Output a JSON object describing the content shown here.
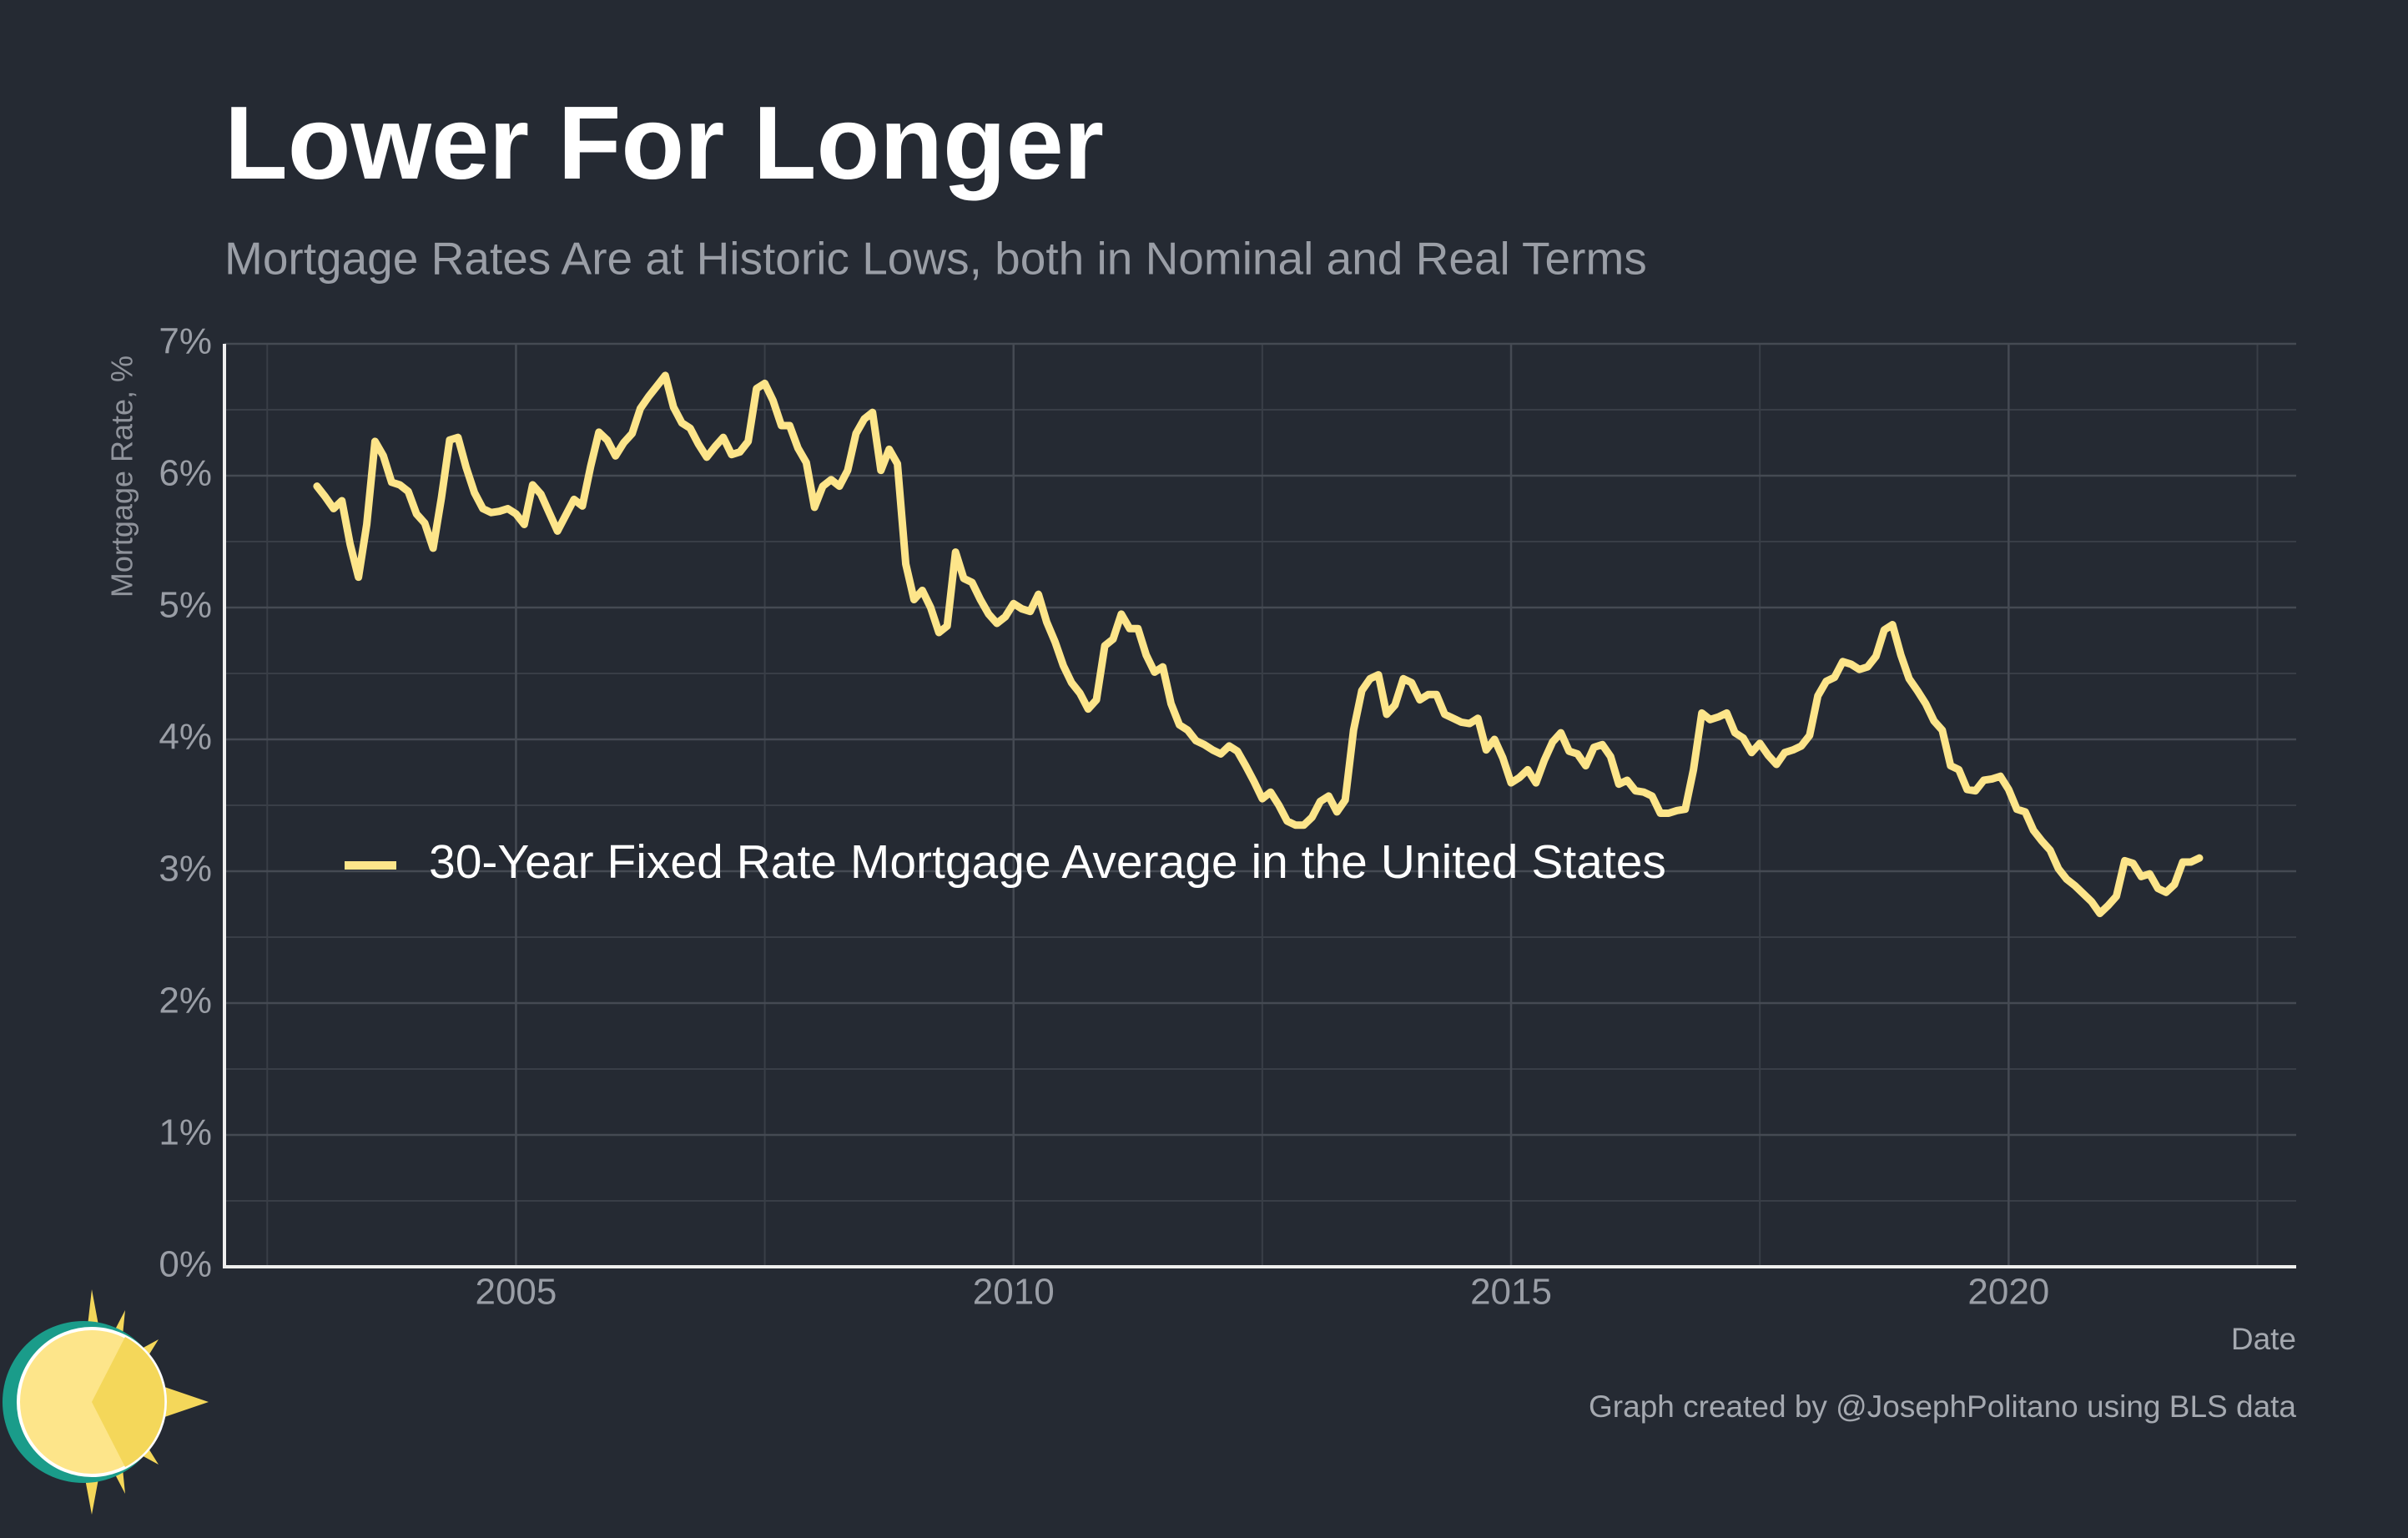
{
  "chart_data": {
    "type": "line",
    "title": "Lower For Longer",
    "subtitle": "Mortgage Rates Are at Historic Lows, both in Nominal and Real Terms",
    "y_label": "Mortgage Rate, %",
    "x_label": "Date",
    "caption": "Graph created by @JosephPolitano using BLS data",
    "xlim": [
      2002.07,
      2022.89
    ],
    "xticks": [
      2005,
      2010,
      2015,
      2020
    ],
    "ylim": [
      0,
      7
    ],
    "yticks": [
      {
        "value": 0,
        "label": "0%"
      },
      {
        "value": 1,
        "label": "1%"
      },
      {
        "value": 2,
        "label": "2%"
      },
      {
        "value": 3,
        "label": "3%"
      },
      {
        "value": 4,
        "label": "4%"
      },
      {
        "value": 5,
        "label": "5%"
      },
      {
        "value": 6,
        "label": "6%"
      },
      {
        "value": 7,
        "label": "7%"
      }
    ],
    "grid": true,
    "legend_position": "left",
    "x": [
      2003.0,
      2003.083,
      2003.167,
      2003.25,
      2003.333,
      2003.417,
      2003.5,
      2003.583,
      2003.667,
      2003.75,
      2003.833,
      2003.917,
      2004.0,
      2004.083,
      2004.167,
      2004.25,
      2004.333,
      2004.417,
      2004.5,
      2004.583,
      2004.667,
      2004.75,
      2004.833,
      2004.917,
      2005.0,
      2005.083,
      2005.167,
      2005.25,
      2005.333,
      2005.417,
      2005.5,
      2005.583,
      2005.667,
      2005.75,
      2005.833,
      2005.917,
      2006.0,
      2006.083,
      2006.167,
      2006.25,
      2006.333,
      2006.417,
      2006.5,
      2006.583,
      2006.667,
      2006.75,
      2006.833,
      2006.917,
      2007.0,
      2007.083,
      2007.167,
      2007.25,
      2007.333,
      2007.417,
      2007.5,
      2007.583,
      2007.667,
      2007.75,
      2007.833,
      2007.917,
      2008.0,
      2008.083,
      2008.167,
      2008.25,
      2008.333,
      2008.417,
      2008.5,
      2008.583,
      2008.667,
      2008.75,
      2008.833,
      2008.917,
      2009.0,
      2009.083,
      2009.167,
      2009.25,
      2009.333,
      2009.417,
      2009.5,
      2009.583,
      2009.667,
      2009.75,
      2009.833,
      2009.917,
      2010.0,
      2010.083,
      2010.167,
      2010.25,
      2010.333,
      2010.417,
      2010.5,
      2010.583,
      2010.667,
      2010.75,
      2010.833,
      2010.917,
      2011.0,
      2011.083,
      2011.167,
      2011.25,
      2011.333,
      2011.417,
      2011.5,
      2011.583,
      2011.667,
      2011.75,
      2011.833,
      2011.917,
      2012.0,
      2012.083,
      2012.167,
      2012.25,
      2012.333,
      2012.417,
      2012.5,
      2012.583,
      2012.667,
      2012.75,
      2012.833,
      2012.917,
      2013.0,
      2013.083,
      2013.167,
      2013.25,
      2013.333,
      2013.417,
      2013.5,
      2013.583,
      2013.667,
      2013.75,
      2013.833,
      2013.917,
      2014.0,
      2014.083,
      2014.167,
      2014.25,
      2014.333,
      2014.417,
      2014.5,
      2014.583,
      2014.667,
      2014.75,
      2014.833,
      2014.917,
      2015.0,
      2015.083,
      2015.167,
      2015.25,
      2015.333,
      2015.417,
      2015.5,
      2015.583,
      2015.667,
      2015.75,
      2015.833,
      2015.917,
      2016.0,
      2016.083,
      2016.167,
      2016.25,
      2016.333,
      2016.417,
      2016.5,
      2016.583,
      2016.667,
      2016.75,
      2016.833,
      2016.917,
      2017.0,
      2017.083,
      2017.167,
      2017.25,
      2017.333,
      2017.417,
      2017.5,
      2017.583,
      2017.667,
      2017.75,
      2017.833,
      2017.917,
      2018.0,
      2018.083,
      2018.167,
      2018.25,
      2018.333,
      2018.417,
      2018.5,
      2018.583,
      2018.667,
      2018.75,
      2018.833,
      2018.917,
      2019.0,
      2019.083,
      2019.167,
      2019.25,
      2019.333,
      2019.417,
      2019.5,
      2019.583,
      2019.667,
      2019.75,
      2019.833,
      2019.917,
      2020.0,
      2020.083,
      2020.167,
      2020.25,
      2020.333,
      2020.417,
      2020.5,
      2020.583,
      2020.667,
      2020.75,
      2020.833,
      2020.917,
      2021.0,
      2021.083,
      2021.167,
      2021.25,
      2021.333,
      2021.417,
      2021.5,
      2021.583,
      2021.667,
      2021.75,
      2021.833,
      2021.917
    ],
    "series": [
      {
        "name": "30-Year Fixed Rate Mortgage Average in the United States",
        "color": "#fde58a",
        "values": [
          5.92,
          5.84,
          5.75,
          5.81,
          5.48,
          5.23,
          5.63,
          6.26,
          6.15,
          5.95,
          5.93,
          5.88,
          5.71,
          5.64,
          5.45,
          5.83,
          6.27,
          6.29,
          6.06,
          5.87,
          5.75,
          5.72,
          5.73,
          5.75,
          5.71,
          5.63,
          5.93,
          5.86,
          5.72,
          5.58,
          5.7,
          5.82,
          5.77,
          6.07,
          6.33,
          6.27,
          6.15,
          6.25,
          6.32,
          6.51,
          6.6,
          6.68,
          6.76,
          6.52,
          6.4,
          6.36,
          6.24,
          6.14,
          6.22,
          6.29,
          6.16,
          6.18,
          6.26,
          6.66,
          6.7,
          6.57,
          6.38,
          6.38,
          6.21,
          6.1,
          5.76,
          5.92,
          5.97,
          5.92,
          6.04,
          6.32,
          6.43,
          6.48,
          6.04,
          6.2,
          6.09,
          5.33,
          5.06,
          5.13,
          5.0,
          4.81,
          4.86,
          5.42,
          5.22,
          5.19,
          5.06,
          4.95,
          4.88,
          4.93,
          5.03,
          4.99,
          4.97,
          5.1,
          4.89,
          4.74,
          4.56,
          4.43,
          4.35,
          4.23,
          4.3,
          4.71,
          4.76,
          4.95,
          4.84,
          4.84,
          4.64,
          4.51,
          4.55,
          4.27,
          4.11,
          4.07,
          3.99,
          3.96,
          3.92,
          3.89,
          3.95,
          3.91,
          3.8,
          3.68,
          3.55,
          3.6,
          3.5,
          3.38,
          3.35,
          3.35,
          3.41,
          3.53,
          3.57,
          3.45,
          3.54,
          4.07,
          4.37,
          4.46,
          4.49,
          4.19,
          4.26,
          4.46,
          4.43,
          4.3,
          4.34,
          4.34,
          4.19,
          4.16,
          4.13,
          4.12,
          4.16,
          3.92,
          4.0,
          3.86,
          3.67,
          3.71,
          3.77,
          3.67,
          3.84,
          3.98,
          4.05,
          3.91,
          3.89,
          3.8,
          3.94,
          3.96,
          3.87,
          3.66,
          3.69,
          3.61,
          3.6,
          3.57,
          3.44,
          3.44,
          3.46,
          3.47,
          3.77,
          4.2,
          4.15,
          4.17,
          4.2,
          4.05,
          4.01,
          3.9,
          3.97,
          3.88,
          3.81,
          3.9,
          3.92,
          3.95,
          4.03,
          4.33,
          4.44,
          4.47,
          4.59,
          4.57,
          4.53,
          4.55,
          4.63,
          4.83,
          4.87,
          4.64,
          4.46,
          4.37,
          4.27,
          4.14,
          4.07,
          3.8,
          3.77,
          3.62,
          3.61,
          3.69,
          3.7,
          3.72,
          3.62,
          3.47,
          3.45,
          3.31,
          3.23,
          3.16,
          3.02,
          2.94,
          2.89,
          2.83,
          2.77,
          2.68,
          2.74,
          2.81,
          3.08,
          3.06,
          2.96,
          2.98,
          2.87,
          2.84,
          2.9,
          3.07,
          3.07,
          3.1
        ]
      }
    ]
  }
}
